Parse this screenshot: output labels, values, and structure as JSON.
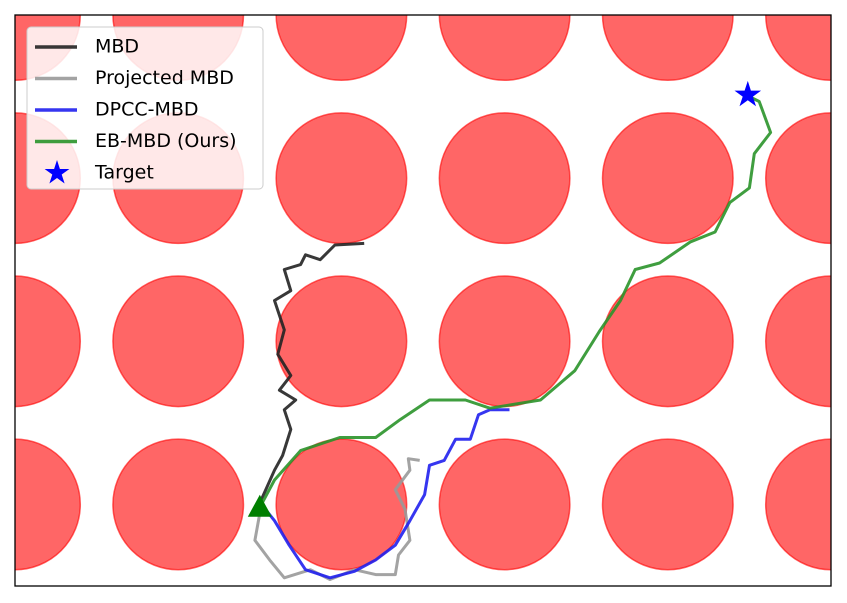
{
  "chart_data": {
    "type": "trajectory",
    "xlim": [
      0,
      5
    ],
    "ylim": [
      0,
      3.5
    ],
    "legend": "upper left",
    "obstacles": {
      "color": "#ff0000",
      "r": 0.4,
      "x": [
        0,
        1,
        2,
        3,
        4,
        5,
        0,
        1,
        2,
        3,
        4,
        5,
        0,
        1,
        2,
        3,
        4,
        5,
        0,
        1,
        2,
        3,
        4,
        5
      ],
      "y": [
        0.5,
        0.5,
        0.5,
        0.5,
        0.5,
        0.5,
        1.5,
        1.5,
        1.5,
        1.5,
        1.5,
        1.5,
        2.5,
        2.5,
        2.5,
        2.5,
        2.5,
        2.5,
        3.5,
        3.5,
        3.5,
        3.5,
        3.5,
        3.5
      ]
    },
    "start": {
      "x": 1.5,
      "y": 0.48,
      "color": "#007f00"
    },
    "series": [
      {
        "name": "MBD",
        "color": "#222222",
        "x": [
          1.51,
          1.59,
          1.64,
          1.69,
          1.65,
          1.72,
          1.62,
          1.69,
          1.61,
          1.65,
          1.59,
          1.69,
          1.65,
          1.75,
          1.78,
          1.87,
          1.96,
          2.14
        ],
        "y": [
          0.53,
          0.71,
          0.8,
          0.96,
          1.08,
          1.14,
          1.2,
          1.29,
          1.42,
          1.57,
          1.75,
          1.81,
          1.94,
          1.97,
          2.03,
          2.0,
          2.09,
          2.1
        ]
      },
      {
        "name": "Projected MBD",
        "color": "#999999",
        "x": [
          1.51,
          1.47,
          1.56,
          1.65,
          1.81,
          1.93,
          2.08,
          2.21,
          2.33,
          2.35,
          2.42,
          2.39,
          2.33,
          2.42,
          2.41,
          2.48
        ],
        "y": [
          0.5,
          0.28,
          0.16,
          0.05,
          0.1,
          0.04,
          0.1,
          0.07,
          0.07,
          0.19,
          0.28,
          0.47,
          0.59,
          0.71,
          0.78,
          0.77
        ]
      },
      {
        "name": "DPCC-MBD",
        "color": "#2020ee",
        "x": [
          1.51,
          1.59,
          1.68,
          1.78,
          1.93,
          2.08,
          2.21,
          2.33,
          2.42,
          2.51,
          2.54,
          2.63,
          2.7,
          2.79,
          2.84,
          2.91,
          3.03
        ],
        "y": [
          0.5,
          0.4,
          0.25,
          0.1,
          0.05,
          0.09,
          0.16,
          0.25,
          0.4,
          0.56,
          0.74,
          0.77,
          0.9,
          0.9,
          1.05,
          1.08,
          1.08
        ]
      },
      {
        "name": "EB-MBD (Ours)",
        "color": "#2a932a",
        "x": [
          1.51,
          1.59,
          1.75,
          1.99,
          2.21,
          2.36,
          2.54,
          2.76,
          2.91,
          3.22,
          3.43,
          3.58,
          3.71,
          3.8,
          3.95,
          4.14,
          4.29,
          4.38,
          4.5,
          4.53,
          4.63,
          4.56,
          4.5
        ],
        "y": [
          0.5,
          0.65,
          0.83,
          0.91,
          0.91,
          1.02,
          1.14,
          1.14,
          1.09,
          1.14,
          1.32,
          1.56,
          1.75,
          1.94,
          1.98,
          2.11,
          2.17,
          2.35,
          2.44,
          2.65,
          2.78,
          2.97,
          3.0
        ]
      },
      {
        "name": "Target",
        "color": "#0000ff",
        "marker": "star",
        "x": [
          4.49
        ],
        "y": [
          3.01
        ]
      }
    ]
  }
}
